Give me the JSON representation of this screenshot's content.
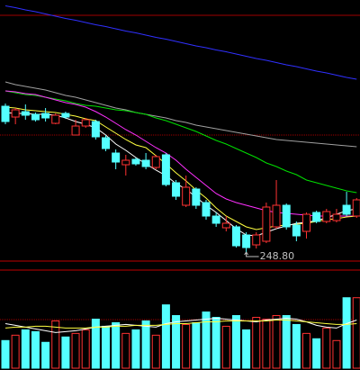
{
  "chart_data": {
    "type": "candlestick",
    "ylim": [
      246.8,
      304.8
    ],
    "up_color": "#ff3232",
    "down_color": "#54ffff",
    "candles": {
      "open": [
        281.2,
        278.8,
        280.0,
        279.4,
        279.6,
        277.4,
        279.6,
        274.8,
        276.8,
        277.8,
        274.2,
        270.8,
        268.2,
        269.4,
        269.2,
        267.6,
        270.4,
        264.2,
        259.2,
        262.8,
        259.8,
        256.8,
        254.2,
        254.4,
        252.6,
        250.4,
        251.2,
        254.4,
        259.2,
        254.8,
        253.4,
        257.6,
        255.6,
        255.8,
        259.2,
        256.8
      ],
      "high": [
        281.8,
        280.8,
        281.6,
        279.8,
        280.8,
        279.6,
        280.0,
        278.2,
        278.6,
        278.2,
        274.8,
        271.6,
        270.4,
        269.8,
        270.8,
        270.4,
        270.8,
        264.8,
        265.8,
        263.2,
        260.4,
        257.6,
        256.8,
        254.8,
        253.2,
        253.2,
        259.8,
        264.8,
        259.6,
        255.6,
        257.6,
        258.0,
        258.4,
        258.4,
        262.2,
        260.8
      ],
      "low": [
        277.2,
        277.2,
        278.2,
        277.8,
        277.8,
        277.2,
        278.4,
        274.8,
        276.4,
        273.8,
        271.2,
        267.2,
        265.8,
        268.0,
        267.2,
        267.2,
        263.4,
        260.4,
        258.8,
        258.4,
        256.0,
        254.4,
        253.4,
        249.8,
        248.8,
        249.6,
        250.8,
        254.0,
        253.8,
        251.2,
        251.8,
        255.2,
        255.2,
        255.4,
        256.8,
        256.4
      ],
      "close": [
        277.8,
        280.4,
        279.2,
        278.2,
        278.6,
        279.2,
        278.8,
        276.8,
        278.2,
        274.4,
        271.8,
        268.8,
        269.2,
        268.4,
        267.8,
        270.0,
        263.8,
        261.2,
        263.2,
        259.2,
        256.8,
        255.2,
        255.2,
        250.2,
        249.8,
        252.6,
        258.8,
        259.2,
        254.4,
        252.4,
        257.2,
        255.6,
        257.8,
        257.2,
        257.2,
        260.4
      ]
    },
    "ma_lines": [
      {
        "color": "#3030ff",
        "values": [
          303.5,
          303.1,
          302.6,
          302.2,
          301.7,
          301.2,
          300.7,
          300.3,
          299.8,
          299.3,
          298.9,
          298.4,
          297.9,
          297.5,
          297.0,
          296.5,
          296.1,
          295.6,
          295.1,
          294.6,
          294.2,
          293.7,
          293.3,
          292.8,
          292.3,
          291.8,
          291.4,
          290.9,
          290.4,
          290.0,
          289.5,
          289.0,
          288.6,
          288.1,
          287.6,
          287.2
        ]
      },
      {
        "color": "#a0a0a0",
        "values": [
          286.6,
          286.0,
          285.6,
          285.2,
          284.8,
          284.2,
          283.6,
          283.2,
          282.6,
          282.0,
          281.4,
          280.8,
          280.4,
          279.8,
          279.4,
          279.0,
          278.6,
          278.0,
          277.6,
          277.0,
          276.6,
          276.2,
          275.8,
          275.4,
          275.0,
          274.6,
          274.2,
          273.8,
          273.6,
          273.4,
          273.2,
          273.0,
          272.8,
          272.6,
          272.4,
          272.2
        ]
      },
      {
        "color": "#00e000",
        "values": [
          284.6,
          284.2,
          283.8,
          283.6,
          283.2,
          282.8,
          282.4,
          281.8,
          281.4,
          281.2,
          280.8,
          280.4,
          280.2,
          279.8,
          279.4,
          278.6,
          278.0,
          277.2,
          276.4,
          275.6,
          274.6,
          273.6,
          272.8,
          271.8,
          270.8,
          269.8,
          268.6,
          267.8,
          266.8,
          266.0,
          264.8,
          264.2,
          263.6,
          263.0,
          262.4,
          262.0
        ]
      },
      {
        "color": "#ff30ff",
        "values": [
          284.6,
          284.4,
          284.0,
          283.8,
          283.2,
          282.6,
          282.0,
          281.6,
          281.0,
          280.0,
          278.8,
          277.4,
          276.0,
          274.8,
          273.4,
          272.0,
          270.8,
          269.2,
          267.2,
          265.4,
          263.6,
          261.8,
          260.6,
          259.8,
          259.2,
          258.6,
          258.0,
          257.6,
          257.4,
          257.2,
          257.0,
          256.8,
          256.8,
          256.8,
          256.8,
          256.8
        ]
      },
      {
        "color": "#ffff40",
        "values": [
          281.0,
          280.8,
          280.4,
          280.2,
          280.0,
          279.8,
          279.4,
          279.0,
          278.4,
          278.0,
          276.6,
          275.2,
          273.8,
          272.6,
          272.0,
          270.2,
          268.4,
          266.4,
          264.6,
          262.6,
          260.8,
          258.6,
          256.8,
          255.6,
          254.4,
          253.8,
          254.2,
          254.6,
          254.8,
          255.0,
          255.2,
          255.6,
          256.0,
          256.2,
          256.6,
          256.8
        ]
      },
      {
        "color": "#ffffff",
        "values": [
          279.8,
          279.6,
          279.6,
          279.4,
          279.4,
          279.2,
          278.6,
          277.8,
          277.2,
          276.4,
          274.8,
          272.8,
          271.4,
          269.8,
          268.4,
          267.0,
          265.8,
          264.0,
          262.8,
          261.0,
          259.2,
          257.6,
          255.8,
          254.0,
          252.6,
          252.4,
          253.2,
          254.0,
          254.6,
          255.2,
          255.4,
          255.8,
          256.4,
          257.2,
          258.0,
          258.4
        ]
      }
    ],
    "low_label": {
      "value": 248.8,
      "label": "248.80"
    },
    "volume": {
      "ylim": [
        0,
        110
      ],
      "values": [
        31,
        37,
        43,
        41,
        29,
        53,
        35,
        39,
        43,
        55,
        47,
        51,
        39,
        43,
        53,
        37,
        71,
        59,
        49,
        51,
        63,
        57,
        47,
        59,
        43,
        57,
        55,
        59,
        59,
        49,
        39,
        33,
        45,
        31,
        79,
        79
      ],
      "ma_lines": [
        {
          "color": "#ffffff",
          "values": [
            50,
            48,
            46,
            44,
            42,
            40,
            41,
            42,
            44,
            46,
            47,
            48,
            49,
            48,
            47,
            46,
            50,
            52,
            53,
            54,
            55,
            56,
            55,
            54,
            53,
            52,
            54,
            55,
            56,
            55,
            52,
            48,
            46,
            45,
            50,
            54
          ]
        },
        {
          "color": "#ffff40",
          "values": [
            45,
            46,
            46,
            47,
            47,
            46,
            45,
            45,
            45,
            46,
            46,
            47,
            47,
            48,
            48,
            48,
            49,
            50,
            50,
            51,
            52,
            52,
            53,
            53,
            53,
            53,
            53,
            54,
            54,
            53,
            52,
            51,
            50,
            49,
            49,
            50
          ]
        }
      ]
    }
  }
}
